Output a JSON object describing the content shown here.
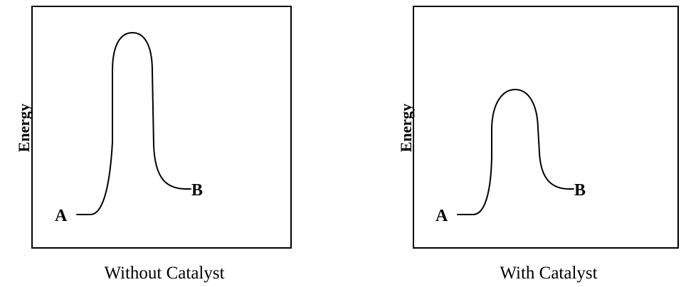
{
  "panels": [
    {
      "id": "without-catalyst",
      "ylabel": "Energy",
      "start_label": "A",
      "end_label": "B",
      "caption": "Without Catalyst"
    },
    {
      "id": "with-catalyst",
      "ylabel": "Energy",
      "start_label": "A",
      "end_label": "B",
      "caption": "With Catalyst"
    }
  ],
  "colors": {
    "line": "#000000",
    "background": "#ffffff"
  }
}
